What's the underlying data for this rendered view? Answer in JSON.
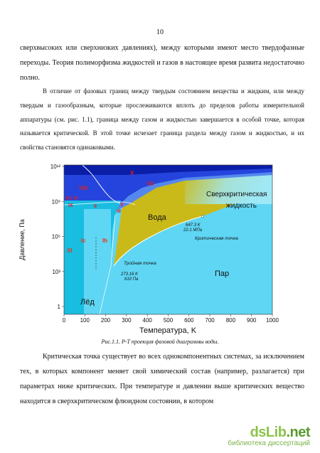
{
  "page_number": "10",
  "paragraph_1": "сверхвысоких или сверхнизких давлениях), между которыми имеют место твердофазные переходы. Теория полиморфизма жидкостей и газов в настоящее время развита недостаточно полно.",
  "paragraph_2": "В отличие от фазовых границ между твердым состоянием вещества и жидким, или между твердым и газообразным, которые прослеживаются вплоть до пределов работы измерительной аппаратуры (см. рис. 1.1), граница между газом и жидкостью завершается в особой точке, которая называется критической. В этой точке исчезает граница раздела между газом и жидкостью, и их свойства становятся одинаковыми.",
  "paragraph_3": "Критическая точка существует во всех однокомпонентных системах, за исключением тех, в которых компонент меняет свой химический состав (например, разлагается) при параметрах ниже критических. При температуре и давлении выше критических вещество находится в сверхкритическом флюидном состоянии, в котором",
  "caption": "Рис.1.1. P-T проекция фазовой диаграммы воды.",
  "watermark": {
    "logo_main": "dsLib",
    "logo_accent": ".net",
    "tagline": "библиотека диссертаций"
  },
  "chart_data": {
    "type": "phase-diagram",
    "title": "",
    "xlabel": "Температура, K",
    "ylabel": "Давление, Па",
    "x_ticks": [
      "0",
      "100",
      "200",
      "300",
      "400",
      "500",
      "600",
      "700",
      "800",
      "900",
      "1000"
    ],
    "y_ticks": [
      "1",
      "10³",
      "10⁶",
      "10⁹",
      "10¹²"
    ],
    "xlim": [
      0,
      1000
    ],
    "ylim_log10_Pa": [
      0,
      12
    ],
    "y_scale": "log",
    "regions": {
      "supercritical": "Сверхкритическая жидкость",
      "water": "Вода",
      "ice": "Лёд",
      "vapor": "Пар"
    },
    "phases": [
      "X",
      "VII",
      "VIII",
      "XV",
      "VI",
      "IX",
      "II",
      "V",
      "III",
      "Ic",
      "Ih",
      "XI"
    ],
    "critical_point": {
      "label": "Критическая точка",
      "T_K": 647.3,
      "P_MPa": 22.1,
      "value_text": "647.3 K\n22.1 МПа"
    },
    "triple_point": {
      "label": "Тройная точка",
      "T_K": 273.16,
      "P_Pa": 610,
      "value_text": "273.16 K\n610 Па"
    },
    "colors": {
      "vapor": "#5fd6f4",
      "ice": "#18bde0",
      "ice_ih": "#5fd6f4",
      "water": "#c9ba1a",
      "supercritical_fade": "#9fe8f6",
      "high_pressure_top": "#0a1ea8",
      "high_pressure_band": "#2444dd",
      "high_pressure_low": "#5588ee",
      "phase_label": "#dd2020",
      "ice_label": "#ee3311"
    }
  }
}
